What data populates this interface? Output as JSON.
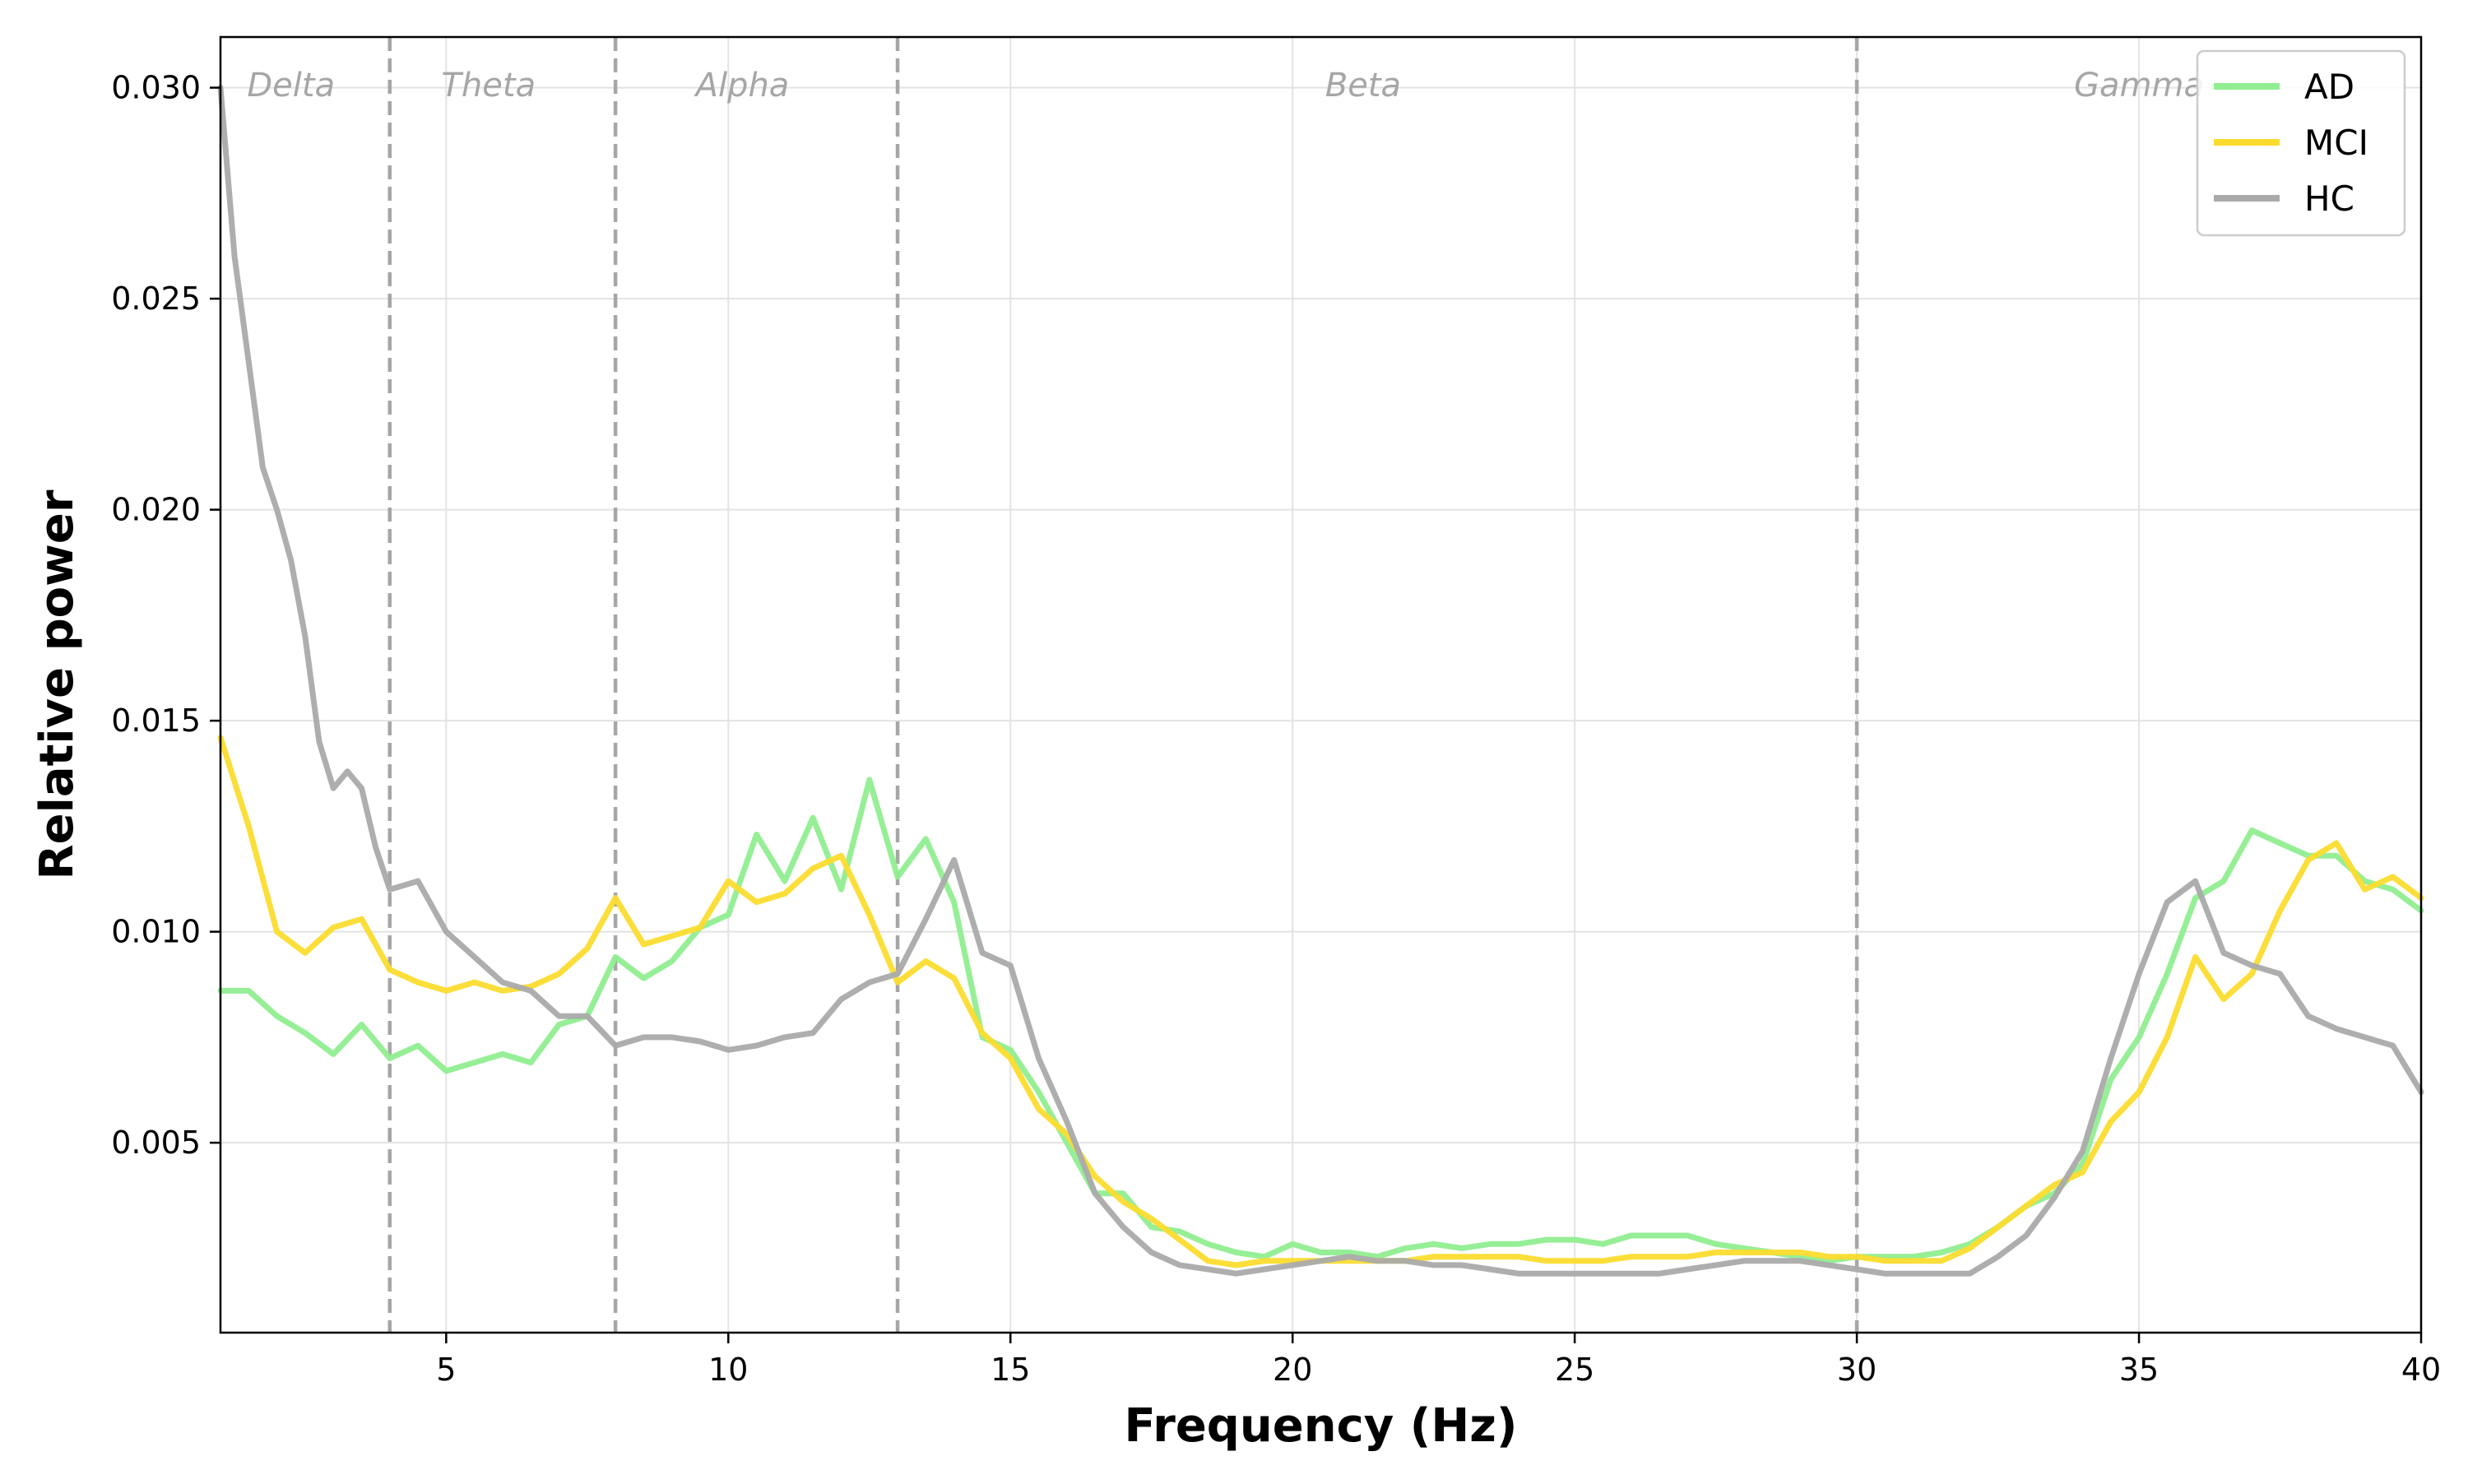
{
  "chart_data": {
    "type": "line",
    "title": "",
    "xlabel": "Frequency (Hz)",
    "ylabel": "Relative power",
    "xlim": [
      1,
      40
    ],
    "ylim": [
      0.0005,
      0.0312
    ],
    "xticks": [
      5,
      10,
      15,
      20,
      25,
      30,
      35,
      40
    ],
    "xtick_labels": [
      "5",
      "10",
      "15",
      "20",
      "25",
      "30",
      "35",
      "40"
    ],
    "yticks": [
      0.005,
      0.01,
      0.015,
      0.02,
      0.025,
      0.03
    ],
    "ytick_labels": [
      "0.005",
      "0.010",
      "0.015",
      "0.020",
      "0.025",
      "0.030"
    ],
    "grid": true,
    "legend_position": "top-right",
    "band_boundaries": [
      4,
      8,
      13,
      30
    ],
    "bands": [
      {
        "label": "Delta",
        "x": 2.25
      },
      {
        "label": "Theta",
        "x": 5.75
      },
      {
        "label": "Alpha",
        "x": 10.25
      },
      {
        "label": "Beta",
        "x": 21.25
      },
      {
        "label": "Gamma",
        "x": 35
      }
    ],
    "series": [
      {
        "name": "AD",
        "color": "#90ee90",
        "points": [
          [
            1,
            0.0086
          ],
          [
            1.5,
            0.0086
          ],
          [
            2,
            0.008
          ],
          [
            2.5,
            0.0076
          ],
          [
            3,
            0.0071
          ],
          [
            3.5,
            0.0078
          ],
          [
            4,
            0.007
          ],
          [
            4.5,
            0.0073
          ],
          [
            5,
            0.0067
          ],
          [
            5.5,
            0.0069
          ],
          [
            6,
            0.0071
          ],
          [
            6.5,
            0.0069
          ],
          [
            7,
            0.0078
          ],
          [
            7.5,
            0.008
          ],
          [
            8,
            0.0094
          ],
          [
            8.5,
            0.0089
          ],
          [
            9,
            0.0093
          ],
          [
            9.5,
            0.0101
          ],
          [
            10,
            0.0104
          ],
          [
            10.5,
            0.0123
          ],
          [
            11,
            0.0112
          ],
          [
            11.5,
            0.0127
          ],
          [
            12,
            0.011
          ],
          [
            12.5,
            0.0136
          ],
          [
            13,
            0.0113
          ],
          [
            13.5,
            0.0122
          ],
          [
            14,
            0.0107
          ],
          [
            14.5,
            0.0075
          ],
          [
            15,
            0.0072
          ],
          [
            15.5,
            0.0062
          ],
          [
            16,
            0.005
          ],
          [
            16.5,
            0.0038
          ],
          [
            17,
            0.0038
          ],
          [
            17.5,
            0.003
          ],
          [
            18,
            0.0029
          ],
          [
            18.5,
            0.0026
          ],
          [
            19,
            0.0024
          ],
          [
            19.5,
            0.0023
          ],
          [
            20,
            0.0026
          ],
          [
            20.5,
            0.0024
          ],
          [
            21,
            0.0024
          ],
          [
            21.5,
            0.0023
          ],
          [
            22,
            0.0025
          ],
          [
            22.5,
            0.0026
          ],
          [
            23,
            0.0025
          ],
          [
            23.5,
            0.0026
          ],
          [
            24,
            0.0026
          ],
          [
            24.5,
            0.0027
          ],
          [
            25,
            0.0027
          ],
          [
            25.5,
            0.0026
          ],
          [
            26,
            0.0028
          ],
          [
            26.5,
            0.0028
          ],
          [
            27,
            0.0028
          ],
          [
            27.5,
            0.0026
          ],
          [
            28,
            0.0025
          ],
          [
            28.5,
            0.0024
          ],
          [
            29,
            0.0023
          ],
          [
            29.5,
            0.0022
          ],
          [
            30,
            0.0023
          ],
          [
            30.5,
            0.0023
          ],
          [
            31,
            0.0023
          ],
          [
            31.5,
            0.0024
          ],
          [
            32,
            0.0026
          ],
          [
            32.5,
            0.003
          ],
          [
            33,
            0.0035
          ],
          [
            33.5,
            0.0038
          ],
          [
            34,
            0.0045
          ],
          [
            34.5,
            0.0065
          ],
          [
            35,
            0.0075
          ],
          [
            35.5,
            0.009
          ],
          [
            36,
            0.0108
          ],
          [
            36.5,
            0.0112
          ],
          [
            37,
            0.0124
          ],
          [
            37.5,
            0.0121
          ],
          [
            38,
            0.0118
          ],
          [
            38.5,
            0.0118
          ],
          [
            39,
            0.0112
          ],
          [
            39.5,
            0.011
          ],
          [
            40,
            0.0105
          ]
        ]
      },
      {
        "name": "MCI",
        "color": "#fbdc2e",
        "points": [
          [
            1,
            0.0146
          ],
          [
            1.5,
            0.0125
          ],
          [
            2,
            0.01
          ],
          [
            2.5,
            0.0095
          ],
          [
            3,
            0.0101
          ],
          [
            3.5,
            0.0103
          ],
          [
            4,
            0.0091
          ],
          [
            4.5,
            0.0088
          ],
          [
            5,
            0.0086
          ],
          [
            5.5,
            0.0088
          ],
          [
            6,
            0.0086
          ],
          [
            6.5,
            0.0087
          ],
          [
            7,
            0.009
          ],
          [
            7.5,
            0.0096
          ],
          [
            8,
            0.0108
          ],
          [
            8.5,
            0.0097
          ],
          [
            9,
            0.0099
          ],
          [
            9.5,
            0.0101
          ],
          [
            10,
            0.0112
          ],
          [
            10.5,
            0.0107
          ],
          [
            11,
            0.0109
          ],
          [
            11.5,
            0.0115
          ],
          [
            12,
            0.0118
          ],
          [
            12.5,
            0.0104
          ],
          [
            13,
            0.0088
          ],
          [
            13.5,
            0.0093
          ],
          [
            14,
            0.0089
          ],
          [
            14.5,
            0.0076
          ],
          [
            15,
            0.007
          ],
          [
            15.5,
            0.0058
          ],
          [
            16,
            0.0052
          ],
          [
            16.5,
            0.0042
          ],
          [
            17,
            0.0036
          ],
          [
            17.5,
            0.0032
          ],
          [
            18,
            0.0027
          ],
          [
            18.5,
            0.0022
          ],
          [
            19,
            0.0021
          ],
          [
            19.5,
            0.0022
          ],
          [
            20,
            0.0022
          ],
          [
            20.5,
            0.0022
          ],
          [
            21,
            0.0022
          ],
          [
            21.5,
            0.0022
          ],
          [
            22,
            0.0022
          ],
          [
            22.5,
            0.0023
          ],
          [
            23,
            0.0023
          ],
          [
            23.5,
            0.0023
          ],
          [
            24,
            0.0023
          ],
          [
            24.5,
            0.0022
          ],
          [
            25,
            0.0022
          ],
          [
            25.5,
            0.0022
          ],
          [
            26,
            0.0023
          ],
          [
            26.5,
            0.0023
          ],
          [
            27,
            0.0023
          ],
          [
            27.5,
            0.0024
          ],
          [
            28,
            0.0024
          ],
          [
            28.5,
            0.0024
          ],
          [
            29,
            0.0024
          ],
          [
            29.5,
            0.0023
          ],
          [
            30,
            0.0023
          ],
          [
            30.5,
            0.0022
          ],
          [
            31,
            0.0022
          ],
          [
            31.5,
            0.0022
          ],
          [
            32,
            0.0025
          ],
          [
            32.5,
            0.003
          ],
          [
            33,
            0.0035
          ],
          [
            33.5,
            0.004
          ],
          [
            34,
            0.0043
          ],
          [
            34.5,
            0.0055
          ],
          [
            35,
            0.0062
          ],
          [
            35.5,
            0.0075
          ],
          [
            36,
            0.0094
          ],
          [
            36.5,
            0.0084
          ],
          [
            37,
            0.009
          ],
          [
            37.5,
            0.0105
          ],
          [
            38,
            0.0117
          ],
          [
            38.5,
            0.0121
          ],
          [
            39,
            0.011
          ],
          [
            39.5,
            0.0113
          ],
          [
            40,
            0.0108
          ]
        ]
      },
      {
        "name": "HC",
        "color": "#aaaaaa",
        "points": [
          [
            1,
            0.03
          ],
          [
            1.25,
            0.026
          ],
          [
            1.5,
            0.0235
          ],
          [
            1.75,
            0.021
          ],
          [
            2,
            0.02
          ],
          [
            2.25,
            0.0188
          ],
          [
            2.5,
            0.017
          ],
          [
            2.75,
            0.0145
          ],
          [
            3,
            0.0134
          ],
          [
            3.25,
            0.0138
          ],
          [
            3.5,
            0.0134
          ],
          [
            3.75,
            0.012
          ],
          [
            4,
            0.011
          ],
          [
            4.5,
            0.0112
          ],
          [
            5,
            0.01
          ],
          [
            5.5,
            0.0094
          ],
          [
            6,
            0.0088
          ],
          [
            6.5,
            0.0086
          ],
          [
            7,
            0.008
          ],
          [
            7.5,
            0.008
          ],
          [
            8,
            0.0073
          ],
          [
            8.5,
            0.0075
          ],
          [
            9,
            0.0075
          ],
          [
            9.5,
            0.0074
          ],
          [
            10,
            0.0072
          ],
          [
            10.5,
            0.0073
          ],
          [
            11,
            0.0075
          ],
          [
            11.5,
            0.0076
          ],
          [
            12,
            0.0084
          ],
          [
            12.5,
            0.0088
          ],
          [
            13,
            0.009
          ],
          [
            13.5,
            0.0103
          ],
          [
            14,
            0.0117
          ],
          [
            14.5,
            0.0095
          ],
          [
            15,
            0.0092
          ],
          [
            15.5,
            0.007
          ],
          [
            16,
            0.0055
          ],
          [
            16.5,
            0.0038
          ],
          [
            17,
            0.003
          ],
          [
            17.5,
            0.0024
          ],
          [
            18,
            0.0021
          ],
          [
            18.5,
            0.002
          ],
          [
            19,
            0.0019
          ],
          [
            19.5,
            0.002
          ],
          [
            20,
            0.0021
          ],
          [
            20.5,
            0.0022
          ],
          [
            21,
            0.0023
          ],
          [
            21.5,
            0.0022
          ],
          [
            22,
            0.0022
          ],
          [
            22.5,
            0.0021
          ],
          [
            23,
            0.0021
          ],
          [
            23.5,
            0.002
          ],
          [
            24,
            0.0019
          ],
          [
            24.5,
            0.0019
          ],
          [
            25,
            0.0019
          ],
          [
            25.5,
            0.0019
          ],
          [
            26,
            0.0019
          ],
          [
            26.5,
            0.0019
          ],
          [
            27,
            0.002
          ],
          [
            27.5,
            0.0021
          ],
          [
            28,
            0.0022
          ],
          [
            28.5,
            0.0022
          ],
          [
            29,
            0.0022
          ],
          [
            29.5,
            0.0021
          ],
          [
            30,
            0.002
          ],
          [
            30.5,
            0.0019
          ],
          [
            31,
            0.0019
          ],
          [
            31.5,
            0.0019
          ],
          [
            32,
            0.0019
          ],
          [
            32.5,
            0.0023
          ],
          [
            33,
            0.0028
          ],
          [
            33.5,
            0.0037
          ],
          [
            34,
            0.0048
          ],
          [
            34.5,
            0.007
          ],
          [
            35,
            0.009
          ],
          [
            35.5,
            0.0107
          ],
          [
            36,
            0.0112
          ],
          [
            36.5,
            0.0095
          ],
          [
            37,
            0.0092
          ],
          [
            37.5,
            0.009
          ],
          [
            38,
            0.008
          ],
          [
            38.5,
            0.0077
          ],
          [
            39,
            0.0075
          ],
          [
            39.5,
            0.0073
          ],
          [
            40,
            0.0062
          ]
        ]
      }
    ]
  }
}
